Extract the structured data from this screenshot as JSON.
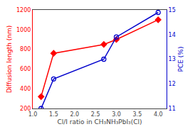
{
  "chart_data": {
    "type": "line",
    "x_label": "Cl/I ratio in CH₃NH₃PbI₃(Cl)",
    "y_label": "Diffusion length (nm)",
    "y2_label": "PCE (%)",
    "x": [
      1.2,
      1.5,
      2.7,
      3.0,
      4.0
    ],
    "series": [
      {
        "color": "#ff0000",
        "marker": "diamond",
        "values": [
          320,
          760,
          850,
          900,
          1100
        ]
      },
      {
        "color": "#0000cc",
        "marker": "open_circle",
        "axis": "y2",
        "values": [
          11.0,
          12.2,
          13.0,
          13.9,
          14.9
        ]
      }
    ],
    "xlim": [
      1.0,
      4.2
    ],
    "xticks": [
      {
        "value": 1.0,
        "label": "1.0"
      },
      1.5,
      {
        "value": 2.0,
        "label": "2.0"
      },
      2.5,
      {
        "value": 3.0,
        "label": "3.0"
      },
      3.5,
      {
        "value": 4.0,
        "label": "4.0"
      }
    ],
    "ylim": [
      200,
      1200
    ],
    "yticks": [
      200,
      400,
      600,
      800,
      1000,
      1200
    ],
    "y2lim": [
      11,
      15
    ],
    "y2ticks": [
      11,
      12,
      13,
      14,
      15
    ],
    "grid": false
  }
}
